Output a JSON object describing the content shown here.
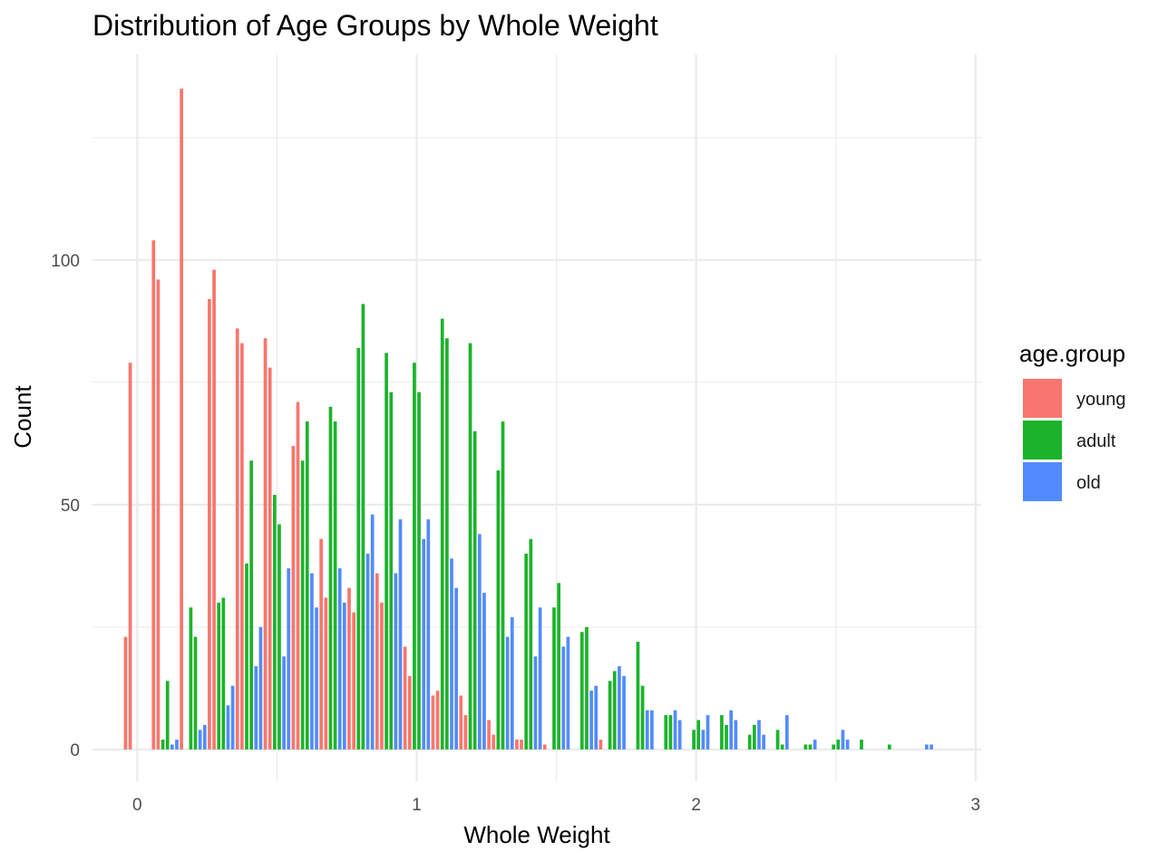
{
  "chart_data": {
    "type": "bar",
    "title": "Distribution of Age Groups by Whole Weight",
    "xlabel": "Whole Weight",
    "ylabel": "Count",
    "x_ticks": [
      0,
      1,
      2,
      3
    ],
    "x_tick_labels": [
      "0",
      "1",
      "2",
      "3"
    ],
    "y_ticks": [
      0,
      50,
      100
    ],
    "y_tick_labels": [
      "0",
      "50",
      "100"
    ],
    "xlim": [
      -0.16,
      3.02
    ],
    "ylim": [
      -6.5,
      142
    ],
    "grid": true,
    "legend": {
      "title": "age.group",
      "position": "right"
    },
    "bin_width": 0.1,
    "bin_centers": [
      0.0,
      0.1,
      0.2,
      0.3,
      0.4,
      0.5,
      0.6,
      0.7,
      0.8,
      0.9,
      1.0,
      1.1,
      1.2,
      1.3,
      1.4,
      1.5,
      1.6,
      1.7,
      1.8,
      1.9,
      2.0,
      2.1,
      2.2,
      2.3,
      2.4,
      2.5,
      2.6,
      2.7,
      2.8
    ],
    "series": [
      {
        "name": "young",
        "color": "#F8766D",
        "values": [
          23,
          104,
          135,
          92,
          86,
          84,
          62,
          43,
          33,
          36,
          21,
          11,
          11,
          6,
          2,
          1,
          0,
          2,
          0,
          0,
          0,
          0,
          0,
          0,
          0,
          0,
          0,
          0,
          0
        ],
        "values_b": [
          79,
          96,
          0,
          98,
          83,
          78,
          71,
          31,
          28,
          30,
          15,
          12,
          7,
          3,
          2,
          0,
          0,
          0,
          0,
          0,
          0,
          0,
          0,
          0,
          0,
          0,
          0,
          0,
          0
        ]
      },
      {
        "name": "adult",
        "color": "#1BB32B",
        "values": [
          0,
          2,
          29,
          30,
          38,
          52,
          59,
          70,
          82,
          81,
          79,
          88,
          83,
          57,
          40,
          29,
          24,
          14,
          22,
          7,
          4,
          7,
          3,
          4,
          1,
          1,
          2,
          1,
          0
        ],
        "values_b": [
          0,
          14,
          23,
          31,
          59,
          46,
          67,
          67,
          91,
          73,
          73,
          84,
          65,
          67,
          43,
          34,
          25,
          16,
          13,
          7,
          6,
          5,
          5,
          1,
          1,
          2,
          0,
          0,
          0
        ]
      },
      {
        "name": "old",
        "color": "#528BFF",
        "values": [
          0,
          1,
          4,
          9,
          17,
          19,
          36,
          37,
          40,
          36,
          43,
          39,
          44,
          23,
          19,
          21,
          12,
          17,
          8,
          8,
          4,
          8,
          6,
          7,
          2,
          4,
          0,
          0,
          1
        ],
        "values_b": [
          0,
          2,
          5,
          13,
          25,
          37,
          29,
          30,
          48,
          47,
          47,
          33,
          32,
          27,
          29,
          23,
          13,
          15,
          8,
          6,
          7,
          6,
          3,
          0,
          0,
          2,
          0,
          0,
          1
        ]
      }
    ]
  }
}
